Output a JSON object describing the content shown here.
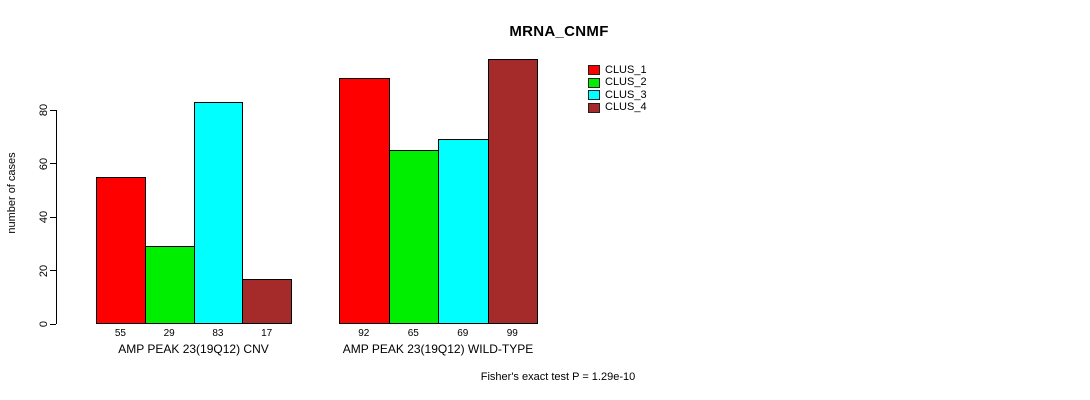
{
  "chart_data": {
    "type": "bar",
    "title": "MRNA_CNMF",
    "ylabel": "number of cases",
    "yticks": [
      0,
      20,
      40,
      60,
      80
    ],
    "grid": false,
    "legend_position": "top-right",
    "categories": [
      "AMP PEAK 23(19Q12) CNV",
      "AMP PEAK 23(19Q12) WILD-TYPE"
    ],
    "series": [
      {
        "name": "CLUS_1",
        "color": "#FF0000",
        "values": [
          55,
          92
        ]
      },
      {
        "name": "CLUS_2",
        "color": "#00EE00",
        "values": [
          29,
          65
        ]
      },
      {
        "name": "CLUS_3",
        "color": "#00FFFF",
        "values": [
          83,
          69
        ]
      },
      {
        "name": "CLUS_4",
        "color": "#A52A2A",
        "values": [
          17,
          99
        ]
      }
    ],
    "bar_value_labels": [
      [
        55,
        29,
        83,
        17
      ],
      [
        92,
        65,
        69,
        99
      ]
    ],
    "annotation": "Fisher's exact test P = 1.29e-10"
  }
}
